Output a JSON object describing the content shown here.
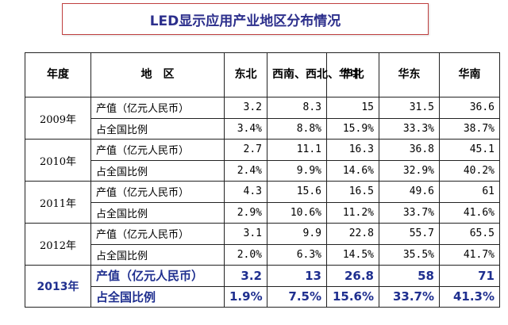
{
  "title": "LED显示应用产业地区分布情况",
  "headers": [
    "年度",
    "地　区",
    "东北",
    "西南、西北、华中",
    "华北",
    "华东",
    "华南"
  ],
  "row_labels": {
    "output": "产值（亿元人民币）",
    "share": "占全国比例"
  },
  "years": [
    {
      "year": "2009年",
      "output": [
        "3.2",
        "8.3",
        "15",
        "31.5",
        "36.6"
      ],
      "share": [
        "3.4%",
        "8.8%",
        "15.9%",
        "33.3%",
        "38.7%"
      ]
    },
    {
      "year": "2010年",
      "output": [
        "2.7",
        "11.1",
        "16.3",
        "36.8",
        "45.1"
      ],
      "share": [
        "2.4%",
        "9.9%",
        "14.6%",
        "32.9%",
        "40.2%"
      ]
    },
    {
      "year": "2011年",
      "output": [
        "4.3",
        "15.6",
        "16.5",
        "49.6",
        "61"
      ],
      "share": [
        "2.9%",
        "10.6%",
        "11.2%",
        "33.7%",
        "41.6%"
      ]
    },
    {
      "year": "2012年",
      "output": [
        "3.1",
        "9.9",
        "22.8",
        "55.7",
        "65.5"
      ],
      "share": [
        "2.0%",
        "6.3%",
        "14.5%",
        "35.5%",
        "41.7%"
      ]
    },
    {
      "year": "2013年",
      "output": [
        "3.2",
        "13",
        "26.8",
        "58",
        "71"
      ],
      "share": [
        "1.9%",
        "7.5%",
        "15.6%",
        "33.7%",
        "41.3%"
      ]
    }
  ],
  "colors": {
    "highlight_text": "#1f2f8f",
    "title_text": "#2c2f8c",
    "title_border": "#c04040"
  }
}
